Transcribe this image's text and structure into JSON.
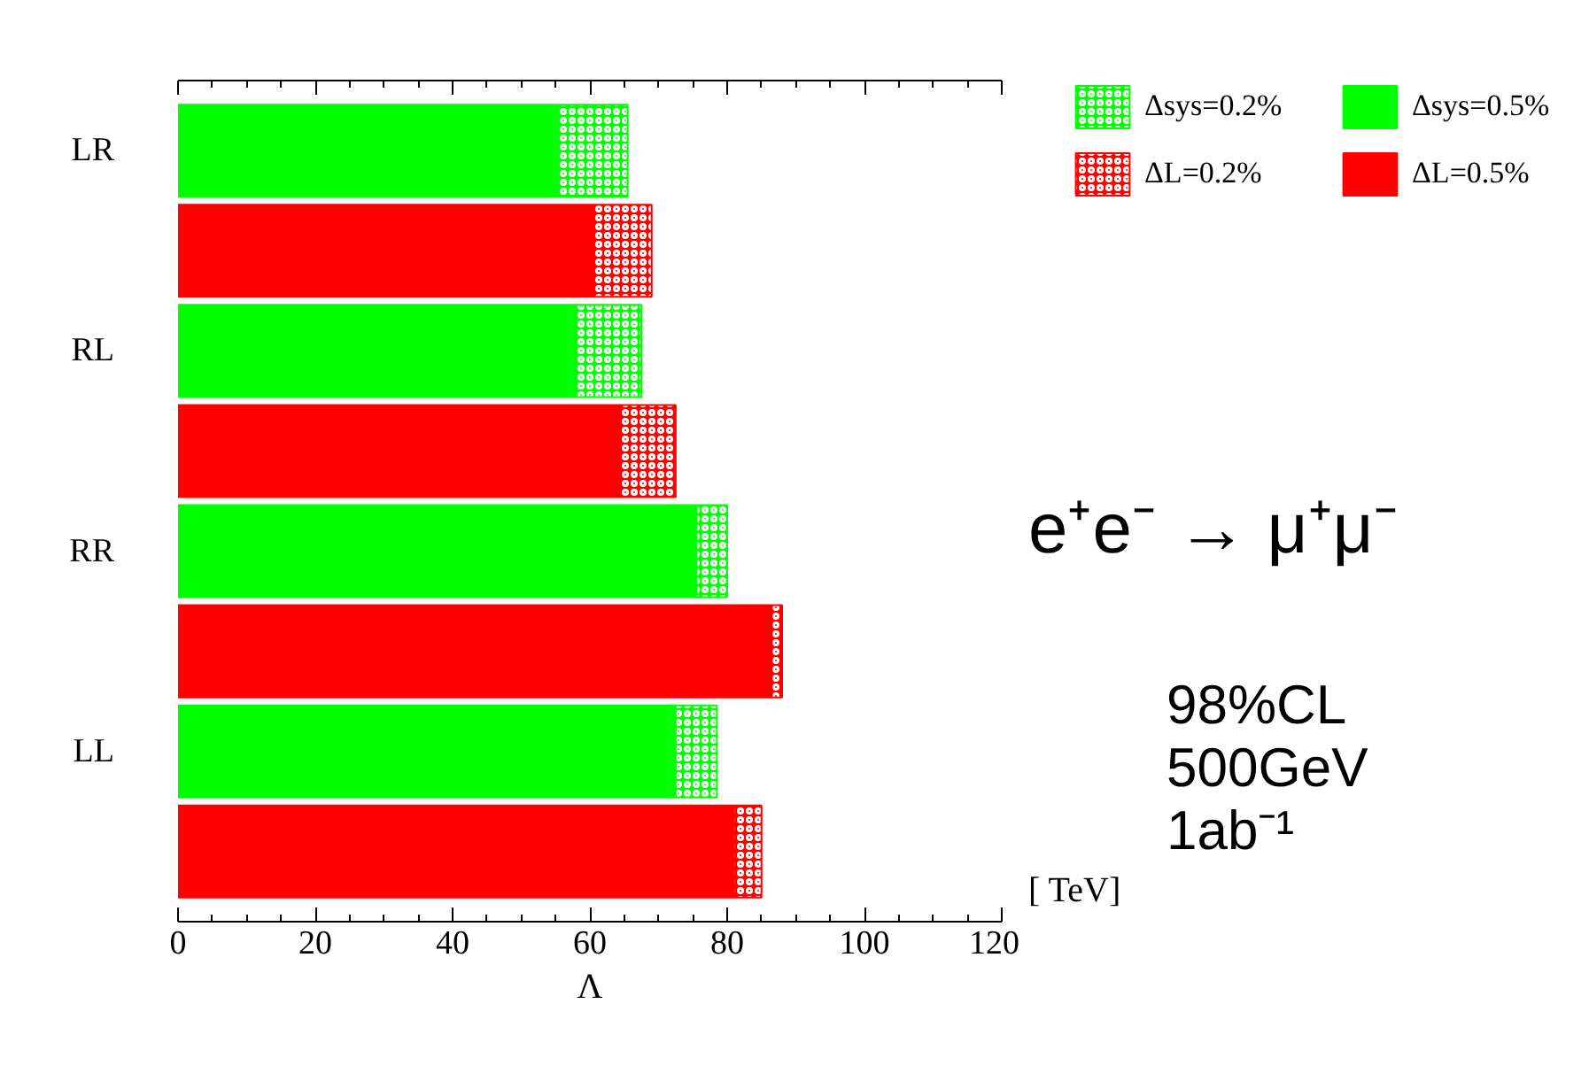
{
  "chart_data": {
    "type": "bar",
    "orientation": "horizontal",
    "stacked": true,
    "categories": [
      "LR",
      null,
      "RL",
      null,
      "RR",
      null,
      "LL",
      null
    ],
    "series": [
      {
        "name": "Δsys=0.5%",
        "color": "#00ff00",
        "values": [
          55.5,
          null,
          58,
          null,
          75.5,
          null,
          72.5,
          null
        ]
      },
      {
        "name": "Δsys=0.2%",
        "color": "#00ff00",
        "values": [
          10,
          null,
          9.5,
          null,
          4.5,
          null,
          6,
          null
        ]
      },
      {
        "name": "ΔL=0.5%",
        "color": "#ff0000",
        "values": [
          null,
          60.5,
          null,
          64.5,
          null,
          86.5,
          null,
          81
        ]
      },
      {
        "name": "ΔL=0.2%",
        "color": "#ff0000",
        "values": [
          null,
          8.5,
          null,
          8,
          null,
          1.5,
          null,
          4
        ]
      }
    ],
    "xlim": [
      0,
      120
    ],
    "xticks": [
      0,
      {
        "value": 5,
        "label": null
      },
      {
        "value": 10,
        "label": null
      },
      {
        "value": 15,
        "label": null
      },
      20,
      {
        "value": 25,
        "label": null
      },
      {
        "value": 30,
        "label": null
      },
      {
        "value": 35,
        "label": null
      },
      40,
      {
        "value": 45,
        "label": null
      },
      {
        "value": 50,
        "label": null
      },
      {
        "value": 55,
        "label": null
      },
      60,
      {
        "value": 65,
        "label": null
      },
      {
        "value": 70,
        "label": null
      },
      {
        "value": 75,
        "label": null
      },
      80,
      {
        "value": 85,
        "label": null
      },
      {
        "value": 90,
        "label": null
      },
      {
        "value": 95,
        "label": null
      },
      100,
      {
        "value": 105,
        "label": null
      },
      {
        "value": 110,
        "label": null
      },
      {
        "value": 115,
        "label": null
      },
      120
    ],
    "xlabel": "Λ",
    "legend": "top right",
    "annotations": [
      "[ TeV]",
      "e⁺e⁻ → μ⁺μ⁻",
      "98%CL",
      "500GeV",
      "1ab⁻¹"
    ]
  }
}
